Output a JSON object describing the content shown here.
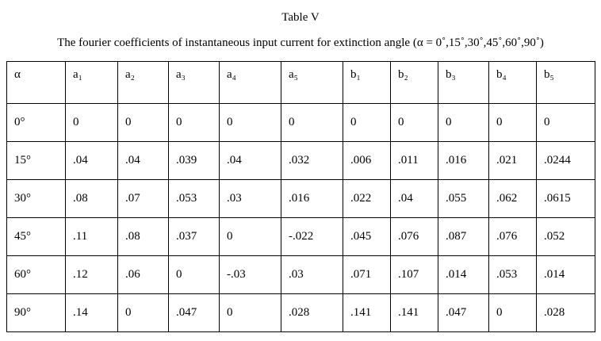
{
  "header": {
    "title": "Table V",
    "caption": "The fourier coefficients of instantaneous input current for extinction angle (α = 0˚,15˚,30˚,45˚,60˚,90˚)"
  },
  "table": {
    "columns": [
      "α",
      "a₁",
      "a₂",
      "a₃",
      "a₄",
      "a₅",
      "b₁",
      "b₂",
      "b₃",
      "b₄",
      "b₅"
    ],
    "rows": [
      [
        "0°",
        "0",
        "0",
        "0",
        "0",
        "0",
        "0",
        "0",
        "0",
        "0",
        "0"
      ],
      [
        "15°",
        ".04",
        ".04",
        ".039",
        ".04",
        ".032",
        ".006",
        ".011",
        ".016",
        ".021",
        ".0244"
      ],
      [
        "30°",
        ".08",
        ".07",
        ".053",
        ".03",
        ".016",
        ".022",
        ".04",
        ".055",
        ".062",
        ".0615"
      ],
      [
        "45°",
        ".11",
        ".08",
        ".037",
        "0",
        "-.022",
        ".045",
        ".076",
        ".087",
        ".076",
        ".052"
      ],
      [
        "60°",
        ".12",
        ".06",
        "0",
        "-.03",
        ".03",
        ".071",
        ".107",
        ".014",
        ".053",
        ".014"
      ],
      [
        "90°",
        ".14",
        "0",
        ".047",
        "0",
        ".028",
        ".141",
        ".141",
        ".047",
        "0",
        ".028"
      ]
    ]
  }
}
